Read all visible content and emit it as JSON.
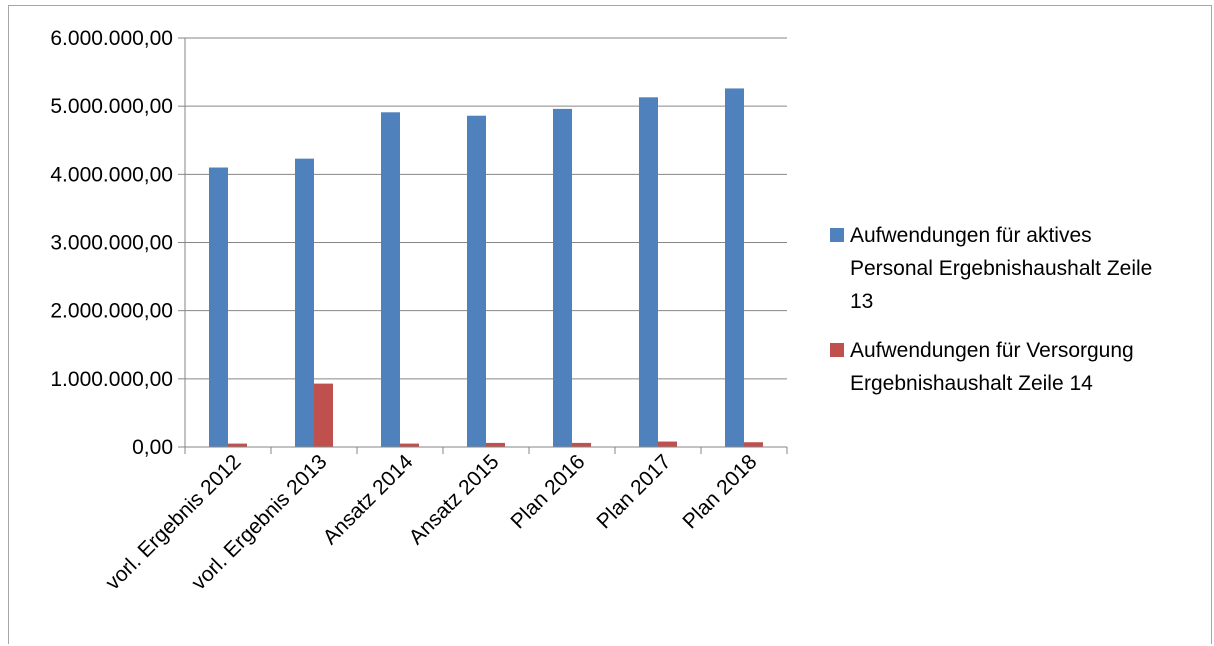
{
  "chart_data": {
    "type": "bar",
    "title": "",
    "xlabel": "",
    "ylabel": "",
    "ylim": [
      0,
      6000000
    ],
    "yticks": [
      0,
      1000000,
      2000000,
      3000000,
      4000000,
      5000000,
      6000000
    ],
    "ytick_labels": [
      "0,00",
      "1.000.000,00",
      "2.000.000,00",
      "3.000.000,00",
      "4.000.000,00",
      "5.000.000,00",
      "6.000.000,00"
    ],
    "grid": true,
    "legend_position": "right",
    "categories": [
      "vorl. Ergebnis 2012",
      "vorl. Ergebnis 2013",
      "Ansatz 2014",
      "Ansatz 2015",
      "Plan 2016",
      "Plan 2017",
      "Plan 2018"
    ],
    "series": [
      {
        "name": "Aufwendungen für aktives Personal Ergebnishaushalt Zeile 13",
        "legend_lines": [
          "Aufwendungen für aktives",
          "Personal Ergebnishaushalt Zeile",
          "13"
        ],
        "color": "#4f81bd",
        "values": [
          4100000,
          4230000,
          4910000,
          4860000,
          4960000,
          5130000,
          5260000
        ]
      },
      {
        "name": "Aufwendungen für Versorgung Ergebnishaushalt Zeile 14",
        "legend_lines": [
          "Aufwendungen für Versorgung",
          "Ergebnishaushalt Zeile 14"
        ],
        "color": "#c0504d",
        "values": [
          50000,
          930000,
          50000,
          60000,
          60000,
          80000,
          70000
        ]
      }
    ]
  }
}
